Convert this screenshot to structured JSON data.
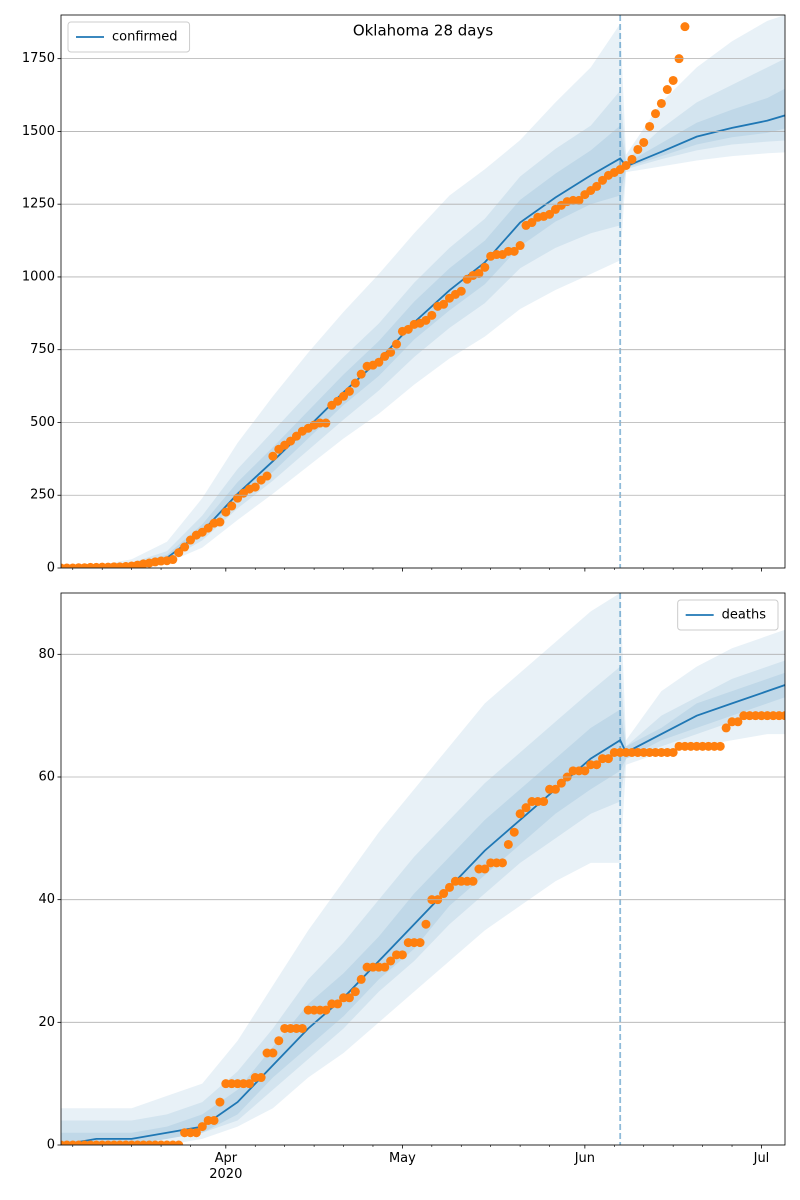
{
  "chart_data": [
    {
      "type": "line",
      "title": "Oklahoma 28 days",
      "xlim": [
        3,
        126
      ],
      "xticks": [
        31,
        61,
        92,
        122
      ],
      "xminorticks": [
        5,
        10,
        15,
        20,
        25,
        36,
        41,
        46,
        51,
        56,
        66,
        71,
        76,
        81,
        86,
        97,
        102,
        107,
        112,
        117
      ],
      "ylim": [
        0,
        1900
      ],
      "yticks": [
        0,
        250,
        500,
        750,
        1000,
        1250,
        1500,
        1750
      ],
      "grid": true,
      "legend": "upper left",
      "vline": 98,
      "vline_color": "#1f77b4",
      "series": [
        {
          "name": "confirmed",
          "color": "#1f77b4",
          "band_opacity": 0.1,
          "x": [
            3,
            9,
            15,
            21,
            27,
            33,
            39,
            45,
            51,
            57,
            63,
            69,
            75,
            81,
            87,
            93,
            98,
            99,
            105,
            111,
            117,
            123,
            126
          ],
          "values": [
            0,
            2,
            10,
            35,
            125,
            255,
            367,
            484,
            604,
            714,
            844,
            954,
            1050,
            1187,
            1273,
            1349,
            1407,
            1380,
            1430,
            1482,
            1512,
            1537,
            1555
          ],
          "bands": [
            {
              "lower": [
                0,
                1,
                5,
                18,
                70,
                165,
                255,
                350,
                445,
                530,
                630,
                720,
                795,
                890,
                955,
                1010,
                1057,
                1360,
                1380,
                1400,
                1415,
                1425,
                1428
              ],
              "upper": [
                3,
                8,
                30,
                90,
                240,
                430,
                590,
                740,
                880,
                1010,
                1150,
                1280,
                1370,
                1470,
                1600,
                1720,
                1870,
                1420,
                1600,
                1720,
                1810,
                1880,
                1900
              ]
            },
            {
              "lower": [
                0,
                1,
                7,
                25,
                95,
                205,
                300,
                405,
                510,
                610,
                725,
                825,
                910,
                1030,
                1100,
                1150,
                1177,
                1370,
                1405,
                1435,
                1455,
                1465,
                1469
              ],
              "upper": [
                1,
                4,
                18,
                58,
                180,
                340,
                470,
                600,
                725,
                840,
                980,
                1100,
                1200,
                1345,
                1440,
                1520,
                1640,
                1400,
                1510,
                1600,
                1660,
                1720,
                1750
              ]
            },
            {
              "lower": [
                0,
                1,
                8,
                29,
                110,
                230,
                330,
                445,
                560,
                660,
                785,
                885,
                975,
                1105,
                1190,
                1250,
                1280,
                1375,
                1415,
                1455,
                1480,
                1495,
                1510
              ],
              "upper": [
                0,
                3,
                13,
                45,
                150,
                295,
                415,
                540,
                665,
                780,
                915,
                1030,
                1125,
                1265,
                1355,
                1435,
                1520,
                1390,
                1460,
                1530,
                1575,
                1615,
                1647
              ]
            }
          ]
        },
        {
          "color": "#ff7f0e",
          "marker": "o",
          "x": [
            3,
            4,
            5,
            6,
            7,
            8,
            9,
            10,
            11,
            12,
            13,
            14,
            15,
            16,
            17,
            18,
            19,
            20,
            21,
            22,
            23,
            24,
            25,
            26,
            27,
            28,
            29,
            30,
            31,
            32,
            33,
            34,
            35,
            36,
            37,
            38,
            39,
            40,
            41,
            42,
            43,
            44,
            45,
            46,
            47,
            48,
            49,
            50,
            51,
            52,
            53,
            54,
            55,
            56,
            57,
            58,
            59,
            60,
            61,
            62,
            63,
            64,
            65,
            66,
            67,
            68,
            69,
            70,
            71,
            72,
            73,
            74,
            75,
            76,
            77,
            78,
            79,
            80,
            81,
            82,
            83,
            84,
            85,
            86,
            87,
            88,
            89,
            90,
            91,
            92,
            93,
            94,
            95,
            96,
            97,
            98,
            99,
            100,
            101,
            102,
            103,
            104,
            105,
            106,
            107,
            108,
            109
          ],
          "values": [
            0,
            0,
            0,
            1,
            1,
            2,
            2,
            3,
            3,
            4,
            4,
            5,
            7,
            10,
            14,
            17,
            21,
            24,
            25,
            29,
            53,
            72,
            96,
            113,
            123,
            137,
            154,
            158,
            192,
            213,
            240,
            257,
            271,
            278,
            302,
            316,
            384,
            408,
            422,
            436,
            453,
            470,
            480,
            491,
            498,
            498,
            559,
            573,
            590,
            607,
            635,
            666,
            693,
            697,
            707,
            727,
            741,
            769,
            813,
            820,
            837,
            841,
            851,
            868,
            899,
            906,
            927,
            940,
            951,
            992,
            1005,
            1012,
            1033,
            1071,
            1077,
            1077,
            1088,
            1088,
            1108,
            1177,
            1187,
            1205,
            1208,
            1215,
            1232,
            1246,
            1259,
            1263,
            1263,
            1283,
            1297,
            1311,
            1332,
            1349,
            1359,
            1369,
            1383,
            1404,
            1438,
            1462,
            1517,
            1561,
            1596,
            1644,
            1675,
            1750,
            1860
          ]
        }
      ]
    },
    {
      "type": "line",
      "xlim": [
        3,
        126
      ],
      "xticks": [
        {
          "value": 31,
          "label": "Apr\n2020"
        },
        {
          "value": 61,
          "label": "May"
        },
        {
          "value": 92,
          "label": "Jun"
        },
        {
          "value": 122,
          "label": "Jul"
        }
      ],
      "xminorticks": [
        5,
        10,
        15,
        20,
        25,
        36,
        41,
        46,
        51,
        56,
        66,
        71,
        76,
        81,
        86,
        97,
        102,
        107,
        112,
        117
      ],
      "ylim": [
        0,
        90
      ],
      "yticks": [
        0,
        20,
        40,
        60,
        80
      ],
      "grid": true,
      "legend": "upper right",
      "vline": 98,
      "vline_color": "#1f77b4",
      "series": [
        {
          "name": "deaths",
          "color": "#1f77b4",
          "band_opacity": 0.1,
          "x": [
            3,
            9,
            15,
            21,
            27,
            33,
            39,
            45,
            51,
            57,
            63,
            69,
            75,
            81,
            87,
            93,
            98,
            99,
            105,
            111,
            117,
            123,
            126
          ],
          "values": [
            0,
            1,
            1,
            2,
            3,
            7,
            13,
            19,
            24,
            30,
            36,
            42,
            48,
            53,
            58,
            63,
            66,
            64,
            67,
            70,
            72,
            74,
            75
          ],
          "bands": [
            {
              "lower": [
                0,
                0,
                0,
                0,
                1,
                3,
                6,
                11,
                15,
                20,
                25,
                30,
                35,
                39,
                43,
                46,
                46,
                62,
                64,
                65,
                66,
                67,
                67
              ],
              "upper": [
                6,
                6,
                6,
                8,
                10,
                17,
                26,
                35,
                43,
                51,
                58,
                65,
                72,
                77,
                82,
                87,
                90,
                66,
                74,
                78,
                81,
                83,
                84
              ]
            },
            {
              "lower": [
                0,
                0,
                0,
                1,
                2,
                4,
                9,
                14,
                19,
                25,
                30,
                36,
                41,
                46,
                50,
                54,
                56,
                63,
                65,
                67,
                69,
                70,
                70
              ],
              "upper": [
                4,
                4,
                4,
                5,
                7,
                12,
                19,
                27,
                33,
                40,
                47,
                53,
                59,
                64,
                69,
                74,
                78,
                65,
                70,
                73,
                76,
                78,
                79
              ]
            },
            {
              "lower": [
                0,
                0,
                0,
                1,
                2,
                5,
                11,
                16,
                21,
                27,
                32,
                39,
                44,
                49,
                54,
                58,
                61,
                63,
                66,
                68,
                70,
                72,
                73
              ],
              "upper": [
                2,
                2,
                2,
                3,
                5,
                9,
                16,
                23,
                28,
                34,
                41,
                47,
                53,
                58,
                63,
                68,
                71,
                65,
                68,
                72,
                74,
                76,
                77
              ]
            }
          ]
        },
        {
          "color": "#ff7f0e",
          "marker": "o",
          "x": [
            3,
            4,
            5,
            6,
            7,
            8,
            9,
            10,
            11,
            12,
            13,
            14,
            15,
            16,
            17,
            18,
            19,
            20,
            21,
            22,
            23,
            24,
            25,
            26,
            27,
            28,
            29,
            30,
            31,
            32,
            33,
            34,
            35,
            36,
            37,
            38,
            39,
            40,
            41,
            42,
            43,
            44,
            45,
            46,
            47,
            48,
            49,
            50,
            51,
            52,
            53,
            54,
            55,
            56,
            57,
            58,
            59,
            60,
            61,
            62,
            63,
            64,
            65,
            66,
            67,
            68,
            69,
            70,
            71,
            72,
            73,
            74,
            75,
            76,
            77,
            78,
            79,
            80,
            81,
            82,
            83,
            84,
            85,
            86,
            87,
            88,
            89,
            90,
            91,
            92,
            93,
            94,
            95,
            96,
            97,
            98,
            99,
            100,
            101,
            102,
            103,
            104,
            105,
            106,
            107,
            108,
            109,
            110,
            111,
            112,
            113,
            114,
            115,
            116,
            117,
            118,
            119,
            120,
            121,
            122,
            123,
            124,
            125,
            126
          ],
          "values": [
            0,
            0,
            0,
            0,
            0,
            0,
            0,
            0,
            0,
            0,
            0,
            0,
            0,
            0,
            0,
            0,
            0,
            0,
            0,
            0,
            0,
            2,
            2,
            2,
            3,
            4,
            4,
            7,
            10,
            10,
            10,
            10,
            10,
            11,
            11,
            15,
            15,
            17,
            19,
            19,
            19,
            19,
            22,
            22,
            22,
            22,
            23,
            23,
            24,
            24,
            25,
            27,
            29,
            29,
            29,
            29,
            30,
            31,
            31,
            33,
            33,
            33,
            36,
            40,
            40,
            41,
            42,
            43,
            43,
            43,
            43,
            45,
            45,
            46,
            46,
            46,
            49,
            51,
            54,
            55,
            56,
            56,
            56,
            58,
            58,
            59,
            60,
            61,
            61,
            61,
            62,
            62,
            63,
            63,
            64,
            64,
            64,
            64,
            64,
            64,
            64,
            64,
            64,
            64,
            64,
            65,
            65,
            65,
            65,
            65,
            65,
            65,
            65,
            68,
            69,
            69,
            70,
            70,
            70,
            70,
            70,
            70,
            70,
            70
          ]
        }
      ]
    }
  ]
}
